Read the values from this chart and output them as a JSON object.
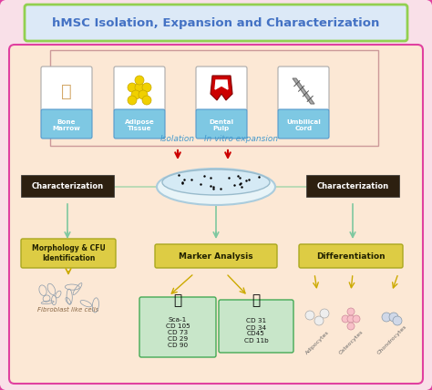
{
  "title": "hMSC Isolation, Expansion and Characterization",
  "title_color": "#4472c4",
  "title_bg": "#dce9f7",
  "title_border": "#92d050",
  "outer_bg": "#f9e0e8",
  "outer_border": "#e040a0",
  "inner_bg": "#fce8d5",
  "tissue_labels": [
    "Bone\nMarrow",
    "Adipose\nTissue",
    "Dental\nPulp",
    "Umbilical\nCord"
  ],
  "tissue_label_bg": "#7ec8e3",
  "tissue_box_bg": "#ffffff",
  "isolation_text": "Isolation",
  "invitro_text": "In vitro expansion",
  "arrow_color": "#cc0000",
  "label_color_blue": "#4499cc",
  "char_box_bg": "#2d2010",
  "char_box_fg": "#ffffff",
  "char_text": "Characterization",
  "connect_line_color": "#7ec8a0",
  "bottom_arrow_color": "#ccaa00",
  "morphology_label": "Morphology & CFU\nIdentification",
  "marker_label": "Marker Analysis",
  "diff_label": "Differentiation",
  "label_box_bg": "#ddcc44",
  "fibroblast_text": "Fibroblast like cells",
  "positive_markers": [
    "Sca-1",
    "CD 105",
    "CD 73",
    "CD 29",
    "CD 90"
  ],
  "negative_markers": [
    "CD 31",
    "CD 34",
    "CD45",
    "CD 11b"
  ],
  "positive_box_bg": "#c8e6c9",
  "negative_box_bg": "#c8e6c9",
  "diff_cells": [
    "Adipocytes",
    "Osteocytes",
    "Chondrocytes"
  ],
  "section_line_color": "#b0d8b0"
}
